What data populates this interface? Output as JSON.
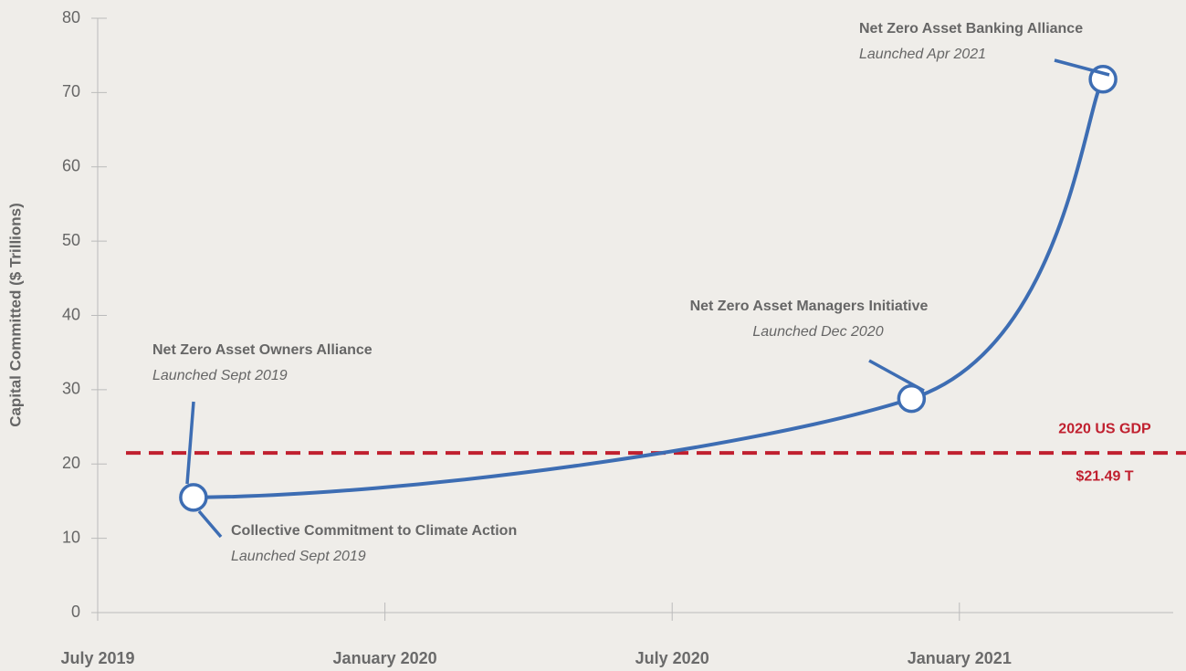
{
  "chart_data": {
    "type": "line",
    "y_label": "Capital Committed ($ Trillions)",
    "x": [
      "2019-09",
      "2020-12",
      "2021-04"
    ],
    "series": [
      {
        "name": "Capital Committed",
        "color": "#3d6db3",
        "values": [
          15.5,
          28.8,
          71.8
        ]
      }
    ],
    "xlim": [
      "2019-07",
      "2021-05-15"
    ],
    "xticks": [
      {
        "value": "2019-07",
        "label": "July 2019"
      },
      {
        "value": "2020-01",
        "label": "January 2020"
      },
      {
        "value": "2020-07",
        "label": "July 2020"
      },
      {
        "value": "2021-01",
        "label": "January 2021"
      }
    ],
    "ylim": [
      0,
      80
    ],
    "yticks": [
      0,
      10,
      20,
      30,
      40,
      50,
      60,
      70,
      80
    ],
    "reference_line": {
      "value": 21.49,
      "label": "2020 US GDP",
      "value_label": "$21.49 T",
      "color": "#c0202f"
    },
    "annotations": [
      {
        "text": "Net Zero Asset Owners Alliance",
        "subtext": "Launched Sept 2019"
      },
      {
        "text": "Collective Commitment to Climate Action",
        "subtext": "Launched Sept 2019"
      },
      {
        "text": "Net Zero Asset Managers Initiative",
        "subtext": "Launched Dec 2020"
      },
      {
        "text": "Net Zero Asset Banking Alliance",
        "subtext": "Launched Apr 2021"
      }
    ]
  }
}
